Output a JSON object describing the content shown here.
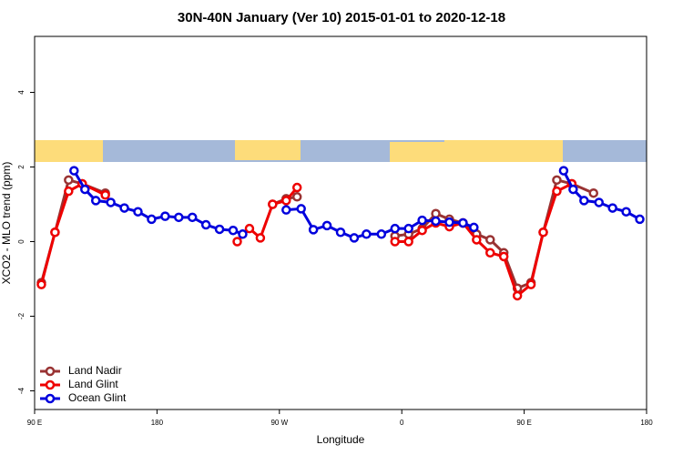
{
  "chart_data": {
    "type": "line",
    "title": "30N-40N January (Ver 10)   2015-01-01 to 2020-12-18",
    "x_label": "Longitude",
    "y_label": "XCO2 - MLO trend (ppm)",
    "xlim": [
      90,
      540
    ],
    "ylim": [
      -4.5,
      5.5
    ],
    "xticks": [
      {
        "value": 90,
        "label": "90 E"
      },
      180,
      {
        "value": 270,
        "label": "90 W"
      },
      {
        "value": 360,
        "label": "0"
      },
      {
        "value": 450,
        "label": "90 E"
      },
      {
        "value": 540,
        "label": "180"
      }
    ],
    "yticks": [
      -4,
      -2,
      0,
      2,
      4
    ],
    "legend": "bottom-left",
    "series": [
      {
        "name": "Land Nadir",
        "color": "#993333",
        "x": [
          95,
          105,
          115,
          125,
          142,
          null,
          265,
          275,
          283,
          null,
          355,
          365,
          375,
          385,
          395,
          405,
          415,
          425,
          435,
          445,
          455,
          464,
          474,
          485,
          501
        ],
        "values": [
          -1.1,
          0.25,
          1.65,
          1.55,
          1.3,
          null,
          1.0,
          1.15,
          1.2,
          null,
          0.15,
          0.2,
          0.35,
          0.75,
          0.6,
          0.5,
          0.2,
          0.05,
          -0.3,
          -1.25,
          -1.1,
          0.25,
          1.65,
          1.55,
          1.3
        ]
      },
      {
        "name": "Land Glint",
        "color": "#ee0000",
        "x": [
          95,
          105,
          115,
          125,
          142,
          null,
          239,
          248,
          256,
          265,
          275,
          283,
          null,
          355,
          365,
          375,
          385,
          395,
          405,
          415,
          425,
          435,
          445,
          455,
          464,
          474,
          485
        ],
        "values": [
          -1.15,
          0.25,
          1.35,
          1.55,
          1.25,
          null,
          0.0,
          0.35,
          0.1,
          1.0,
          1.1,
          1.45,
          null,
          0.0,
          0.0,
          0.3,
          0.5,
          0.4,
          0.5,
          0.05,
          -0.3,
          -0.4,
          -1.45,
          -1.15,
          0.25,
          1.35,
          1.55
        ]
      },
      {
        "name": "Ocean Glint",
        "color": "#0000dd",
        "x": [
          119,
          127,
          135,
          146,
          156,
          166,
          176,
          186,
          196,
          206,
          216,
          226,
          236,
          243,
          null,
          275,
          286,
          295,
          305,
          315,
          325,
          334,
          345,
          355,
          365,
          375,
          385,
          395,
          405,
          413,
          null,
          479,
          486,
          494,
          505,
          515,
          525,
          535
        ],
        "values": [
          1.9,
          1.4,
          1.1,
          1.05,
          0.9,
          0.8,
          0.6,
          0.68,
          0.65,
          0.65,
          0.45,
          0.33,
          0.3,
          0.2,
          null,
          0.85,
          0.88,
          0.32,
          0.43,
          0.25,
          0.1,
          0.2,
          0.2,
          0.35,
          0.35,
          0.57,
          0.55,
          0.52,
          0.5,
          0.38,
          null,
          1.9,
          1.4,
          1.1,
          1.05,
          0.9,
          0.8,
          0.6
        ]
      }
    ]
  }
}
